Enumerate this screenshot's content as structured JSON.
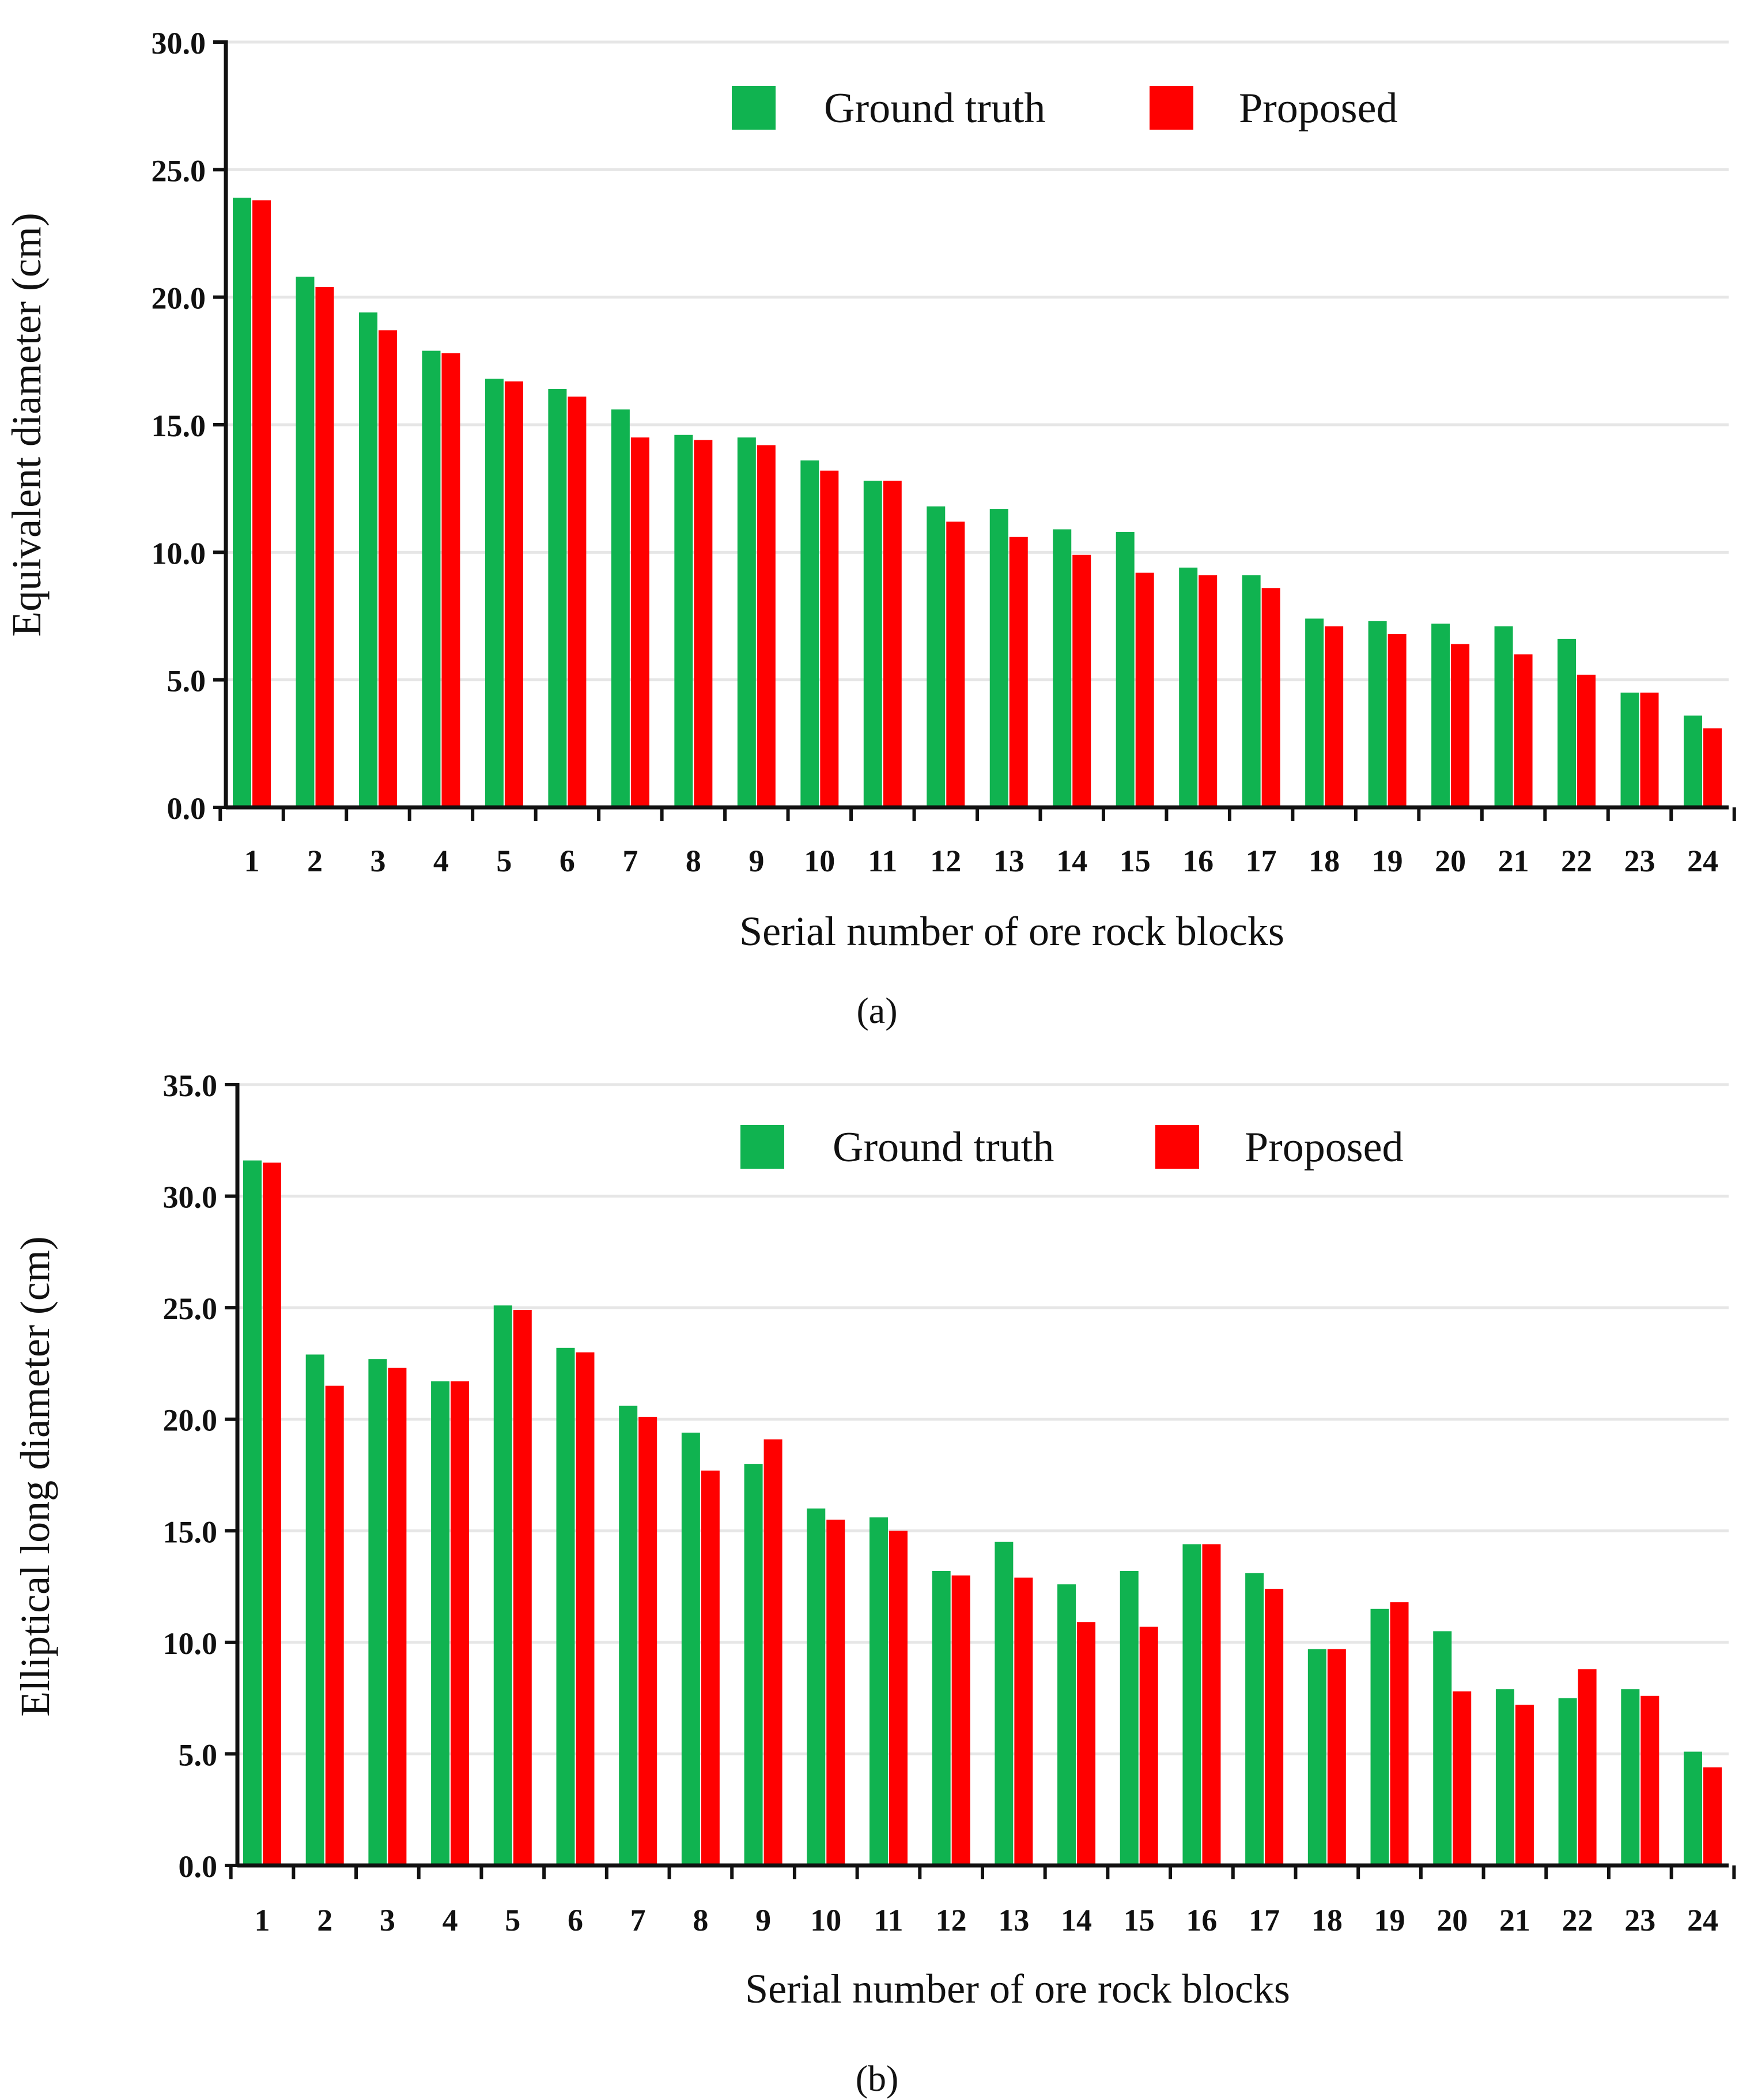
{
  "figure": {
    "captions": [
      "(a)",
      "(b)"
    ]
  },
  "colors": {
    "ground_truth": "#10b350",
    "proposed": "#ff0000",
    "grid": "#e6e6e6",
    "axis": "#111111"
  },
  "chart_data": [
    {
      "type": "bar",
      "panel_label": "a",
      "xlabel": "Serial number of ore rock blocks",
      "ylabel": "Equivalent diameter (cm)",
      "ylim": [
        0,
        30
      ],
      "yticks": [
        "0.0",
        "5.0",
        "10.0",
        "15.0",
        "20.0",
        "25.0",
        "30.0"
      ],
      "grid": true,
      "legend": "top",
      "categories": [
        "1",
        "2",
        "3",
        "4",
        "5",
        "6",
        "7",
        "8",
        "9",
        "10",
        "11",
        "12",
        "13",
        "14",
        "15",
        "16",
        "17",
        "18",
        "19",
        "20",
        "21",
        "22",
        "23",
        "24"
      ],
      "series": [
        {
          "name": "Ground truth",
          "color": "#10b350",
          "values": [
            23.9,
            20.8,
            19.4,
            17.9,
            16.8,
            16.4,
            15.6,
            14.6,
            14.5,
            13.6,
            12.8,
            11.8,
            11.7,
            10.9,
            10.8,
            9.4,
            9.1,
            7.4,
            7.3,
            7.2,
            7.1,
            6.6,
            4.5,
            3.6
          ]
        },
        {
          "name": "Proposed",
          "color": "#ff0000",
          "values": [
            23.8,
            20.4,
            18.7,
            17.8,
            16.7,
            16.1,
            14.5,
            14.4,
            14.2,
            13.2,
            12.8,
            11.2,
            10.6,
            9.9,
            9.2,
            9.1,
            8.6,
            7.1,
            6.8,
            6.4,
            6.0,
            5.2,
            4.5,
            3.1
          ]
        }
      ]
    },
    {
      "type": "bar",
      "panel_label": "b",
      "xlabel": "Serial number of ore rock blocks",
      "ylabel": "Elliptical long diameter (cm)",
      "ylim": [
        0,
        35
      ],
      "yticks": [
        "0.0",
        "5.0",
        "10.0",
        "15.0",
        "20.0",
        "25.0",
        "30.0",
        "35.0"
      ],
      "grid": true,
      "legend": "top",
      "categories": [
        "1",
        "2",
        "3",
        "4",
        "5",
        "6",
        "7",
        "8",
        "9",
        "10",
        "11",
        "12",
        "13",
        "14",
        "15",
        "16",
        "17",
        "18",
        "19",
        "20",
        "21",
        "22",
        "23",
        "24"
      ],
      "series": [
        {
          "name": "Ground truth",
          "color": "#10b350",
          "values": [
            31.6,
            22.9,
            22.7,
            21.7,
            25.1,
            23.2,
            20.6,
            19.4,
            18.0,
            16.0,
            15.6,
            13.2,
            14.5,
            12.6,
            13.2,
            14.4,
            13.1,
            9.7,
            11.5,
            10.5,
            7.9,
            7.5,
            7.9,
            5.1
          ]
        },
        {
          "name": "Proposed",
          "color": "#ff0000",
          "values": [
            31.5,
            21.5,
            22.3,
            21.7,
            24.9,
            23.0,
            20.1,
            17.7,
            19.1,
            15.5,
            15.0,
            13.0,
            12.9,
            10.9,
            10.7,
            14.4,
            12.4,
            9.7,
            11.8,
            7.8,
            7.2,
            8.8,
            7.6,
            4.4
          ]
        }
      ]
    }
  ]
}
